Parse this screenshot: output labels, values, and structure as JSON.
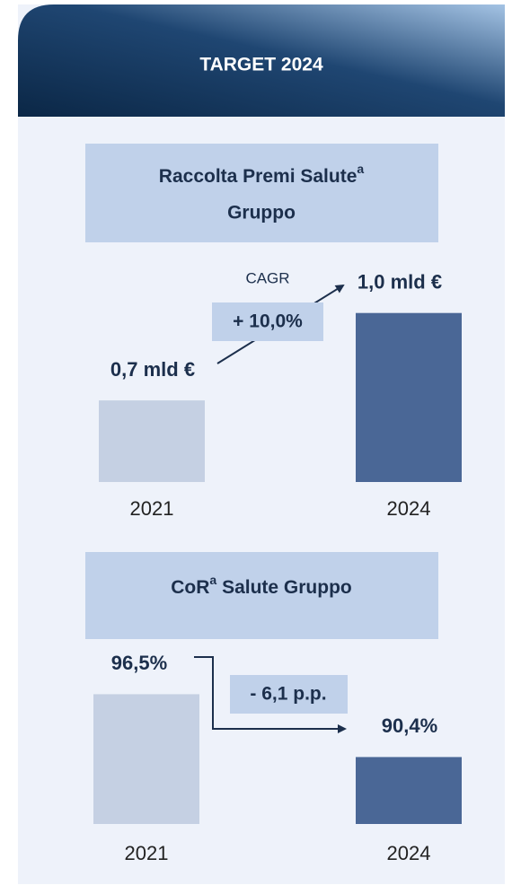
{
  "header": {
    "title": "TARGET 2024"
  },
  "chart_data": [
    {
      "type": "bar",
      "title": [
        "Raccolta Premi Salute",
        "Gruppo"
      ],
      "title_superscript": "a",
      "categories": [
        "2021",
        "2024"
      ],
      "values": [
        0.7,
        1.0
      ],
      "value_labels": [
        "0,7 mld €",
        "1,0 mld €"
      ],
      "colors": [
        "#c5d0e3",
        "#4a6796"
      ],
      "ylim": [
        0.42,
        1.15
      ],
      "annotation": {
        "label": "CAGR",
        "value": "+ 10,0%"
      }
    },
    {
      "type": "bar",
      "title": [
        "CoR",
        "Salute Gruppo"
      ],
      "title_superscript": "a",
      "categories": [
        "2021",
        "2024"
      ],
      "values": [
        96.5,
        90.4
      ],
      "value_labels": [
        "96,5%",
        "90,4%"
      ],
      "colors": [
        "#c5d0e3",
        "#4a6796"
      ],
      "ylim": [
        83.9,
        102.9
      ],
      "annotation": {
        "value": "- 6,1 p.p."
      }
    }
  ]
}
